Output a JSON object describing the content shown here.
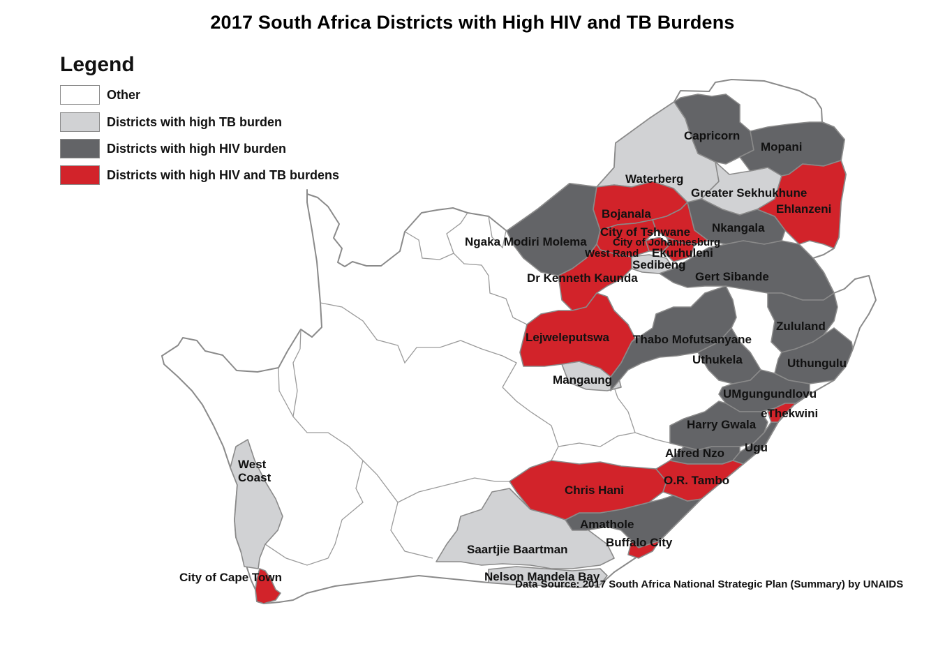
{
  "title": "2017 South Africa Districts with High HIV and TB Burdens",
  "legend": {
    "title": "Legend",
    "items": [
      {
        "label": "Other",
        "color": "#ffffff"
      },
      {
        "label": "Districts with high TB burden",
        "color": "#d1d2d4"
      },
      {
        "label": "Districts with high HIV burden",
        "color": "#636467"
      },
      {
        "label": "Districts with high HIV and TB burdens",
        "color": "#d2232a"
      }
    ]
  },
  "districts": [
    {
      "name": "Capricorn",
      "category": "hiv"
    },
    {
      "name": "Mopani",
      "category": "hiv"
    },
    {
      "name": "Waterberg",
      "category": "tb"
    },
    {
      "name": "Greater Sekhukhune",
      "category": "tb"
    },
    {
      "name": "Ehlanzeni",
      "category": "hiv_tb"
    },
    {
      "name": "Bojanala",
      "category": "hiv_tb"
    },
    {
      "name": "City of Tshwane",
      "category": "hiv_tb"
    },
    {
      "name": "Nkangala",
      "category": "hiv"
    },
    {
      "name": "City of Johannesburg",
      "category": "hiv_tb"
    },
    {
      "name": "Ngaka Modiri Molema",
      "category": "hiv"
    },
    {
      "name": "West Rand",
      "category": "hiv_tb"
    },
    {
      "name": "Ekurhuleni",
      "category": "hiv_tb"
    },
    {
      "name": "Sedibeng",
      "category": "tb"
    },
    {
      "name": "Dr Kenneth Kaunda",
      "category": "hiv_tb"
    },
    {
      "name": "Gert Sibande",
      "category": "hiv"
    },
    {
      "name": "Zululand",
      "category": "hiv"
    },
    {
      "name": "Lejweleputswa",
      "category": "hiv_tb"
    },
    {
      "name": "Thabo Mofutsanyane",
      "category": "hiv"
    },
    {
      "name": "Uthukela",
      "category": "hiv"
    },
    {
      "name": "Uthungulu",
      "category": "hiv"
    },
    {
      "name": "Mangaung",
      "category": "tb"
    },
    {
      "name": "UMgungundlovu",
      "category": "hiv"
    },
    {
      "name": "eThekwini",
      "category": "hiv_tb"
    },
    {
      "name": "Harry Gwala",
      "category": "hiv"
    },
    {
      "name": "Ugu",
      "category": "hiv"
    },
    {
      "name": "Alfred Nzo",
      "category": "hiv"
    },
    {
      "name": "West",
      "category": "tb"
    },
    {
      "name": "Coast",
      "category": "tb"
    },
    {
      "name": "Chris Hani",
      "category": "hiv_tb"
    },
    {
      "name": "O.R. Tambo",
      "category": "hiv_tb"
    },
    {
      "name": "Amathole",
      "category": "hiv"
    },
    {
      "name": "Buffalo City",
      "category": "hiv_tb"
    },
    {
      "name": "Saartjie Baartman",
      "category": "tb"
    },
    {
      "name": "City of Cape Town",
      "category": "hiv_tb"
    },
    {
      "name": "Nelson Mandela Bay",
      "category": "tb"
    }
  ],
  "source": "Data Source: 2017 South Africa National Strategic Plan (Summary) by UNAIDS"
}
